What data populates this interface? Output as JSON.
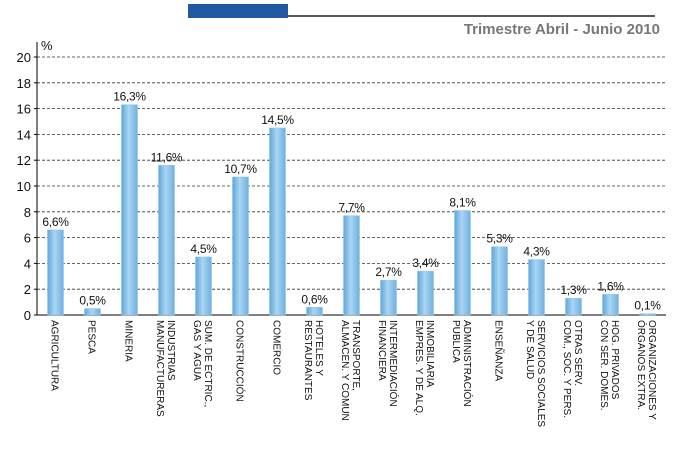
{
  "chart_data": {
    "type": "bar",
    "title": "Trimestre Abril - Junio 2010",
    "y_label": "%",
    "categories": [
      "AGRICULTURA",
      "PESCA",
      "MINERIA",
      "INDUSTRIAS\nMANUFACTURERAS",
      "SUM. DE ECTRIC.,\nGAS Y AGUA",
      "CONSTRUCCIÓN",
      "COMERCIO",
      "HOTELES Y\nRESTAURANTES",
      "TRANSPORTE,\nALMACEN. Y COMUN",
      "INTERMEDIACIÓN\nFINANCIERA",
      "INMOBILIARIA\nEMPRES. Y DE ALQ.",
      "ADMINISTRACIÓN\nPUBLICA",
      "ENSEÑANZA",
      "SERVICIOS SOCIALES\nY DE SALUD",
      "OTRAS SERV.\nCOM., SOC. Y PERS.",
      "HOG. PRIVADOS\nCON SER. DOMES.",
      "ORGANIZACIONES Y\nÓRGANOS EXTRA."
    ],
    "values": [
      6.6,
      0.5,
      16.3,
      11.6,
      4.5,
      10.7,
      14.5,
      0.6,
      7.7,
      2.7,
      3.4,
      8.1,
      5.3,
      4.3,
      1.3,
      1.6,
      0.1
    ],
    "value_labels": [
      "6,6%",
      "0,5%",
      "16,3%",
      "11,6%",
      "4,5%",
      "10,7%",
      "14,5%",
      "0,6%",
      "7,7%",
      "2,7%",
      "3,4%",
      "8,1%",
      "5,3%",
      "4,3%",
      "1,3%",
      "1,6%",
      "0,1%"
    ],
    "color": "#8cc4ea",
    "ylim": [
      0,
      20
    ],
    "yticks": [
      0,
      2,
      4,
      6,
      8,
      10,
      12,
      14,
      16,
      18,
      20
    ],
    "grid": true
  }
}
